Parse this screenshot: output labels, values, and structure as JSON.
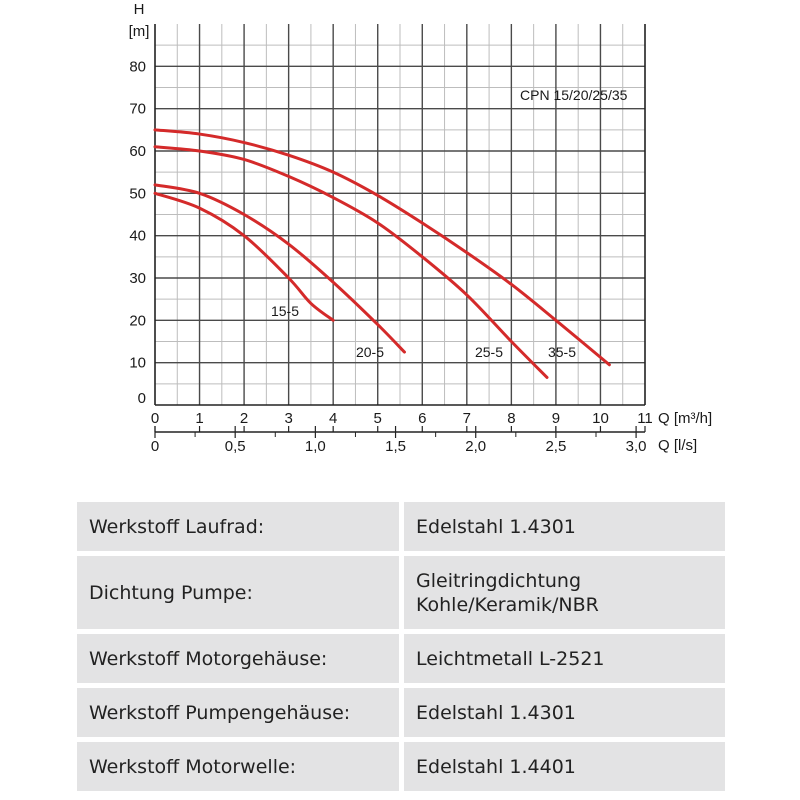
{
  "chart_data": {
    "type": "line",
    "title": "CPN 15/20/25/35",
    "y_axis": {
      "label": "H",
      "unit": "[m]",
      "range": [
        0,
        90
      ],
      "ticks": [
        "0",
        "10",
        "20",
        "30",
        "40",
        "50",
        "60",
        "70",
        "80"
      ]
    },
    "x_axis": {
      "label": "Q [m³/h]",
      "range": [
        0,
        11
      ],
      "ticks": [
        "0",
        "1",
        "2",
        "3",
        "4",
        "5",
        "6",
        "7",
        "8",
        "9",
        "10",
        "11"
      ]
    },
    "x_axis_secondary": {
      "label": "Q [l/s]",
      "ticks": [
        "0",
        "0,5",
        "1,0",
        "1,5",
        "2,0",
        "2,5",
        "3,0"
      ]
    },
    "grid": true,
    "series": [
      {
        "name": "15-5",
        "x": [
          0,
          1,
          2,
          3,
          3.5,
          4.0
        ],
        "y": [
          50,
          46.5,
          40,
          30,
          24,
          20
        ]
      },
      {
        "name": "20-5",
        "x": [
          0,
          1,
          2,
          3,
          4,
          5,
          5.6
        ],
        "y": [
          52,
          50,
          45,
          38,
          29,
          19,
          12.5
        ]
      },
      {
        "name": "25-5",
        "x": [
          0,
          1,
          2,
          3,
          4,
          5,
          6,
          7,
          8,
          8.8
        ],
        "y": [
          61,
          60,
          58,
          54,
          49,
          43,
          35,
          26,
          15,
          6.5
        ]
      },
      {
        "name": "35-5",
        "x": [
          0,
          1,
          2,
          3,
          4,
          5,
          6,
          7,
          8,
          9,
          10.2
        ],
        "y": [
          65,
          64,
          62,
          59,
          55,
          49.5,
          43,
          36,
          28.5,
          20,
          9.5
        ]
      }
    ],
    "line_color": "#d42a2a"
  },
  "specs": [
    {
      "label": "Werkstoff Laufrad:",
      "value": [
        "Edelstahl 1.4301"
      ]
    },
    {
      "label": "Dichtung Pumpe:",
      "value": [
        "Gleitringdichtung",
        "Kohle/Keramik/NBR"
      ]
    },
    {
      "label": "Werkstoff Motorgehäuse:",
      "value": [
        "Leichtmetall L-2521"
      ]
    },
    {
      "label": "Werkstoff Pumpengehäuse:",
      "value": [
        "Edelstahl 1.4301"
      ]
    },
    {
      "label": "Werkstoff Motorwelle:",
      "value": [
        "Edelstahl 1.4401"
      ]
    }
  ]
}
